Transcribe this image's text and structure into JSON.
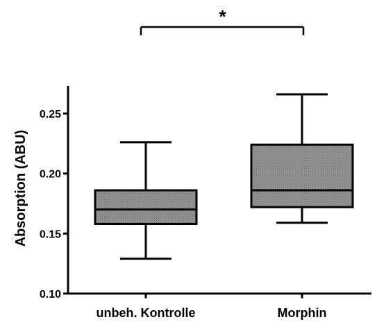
{
  "chart_data": {
    "type": "box",
    "title": "",
    "xlabel": "",
    "ylabel": "Absorption (ABU)",
    "ylim": [
      0.1,
      0.27
    ],
    "yticks": [
      0.1,
      0.15,
      0.2,
      0.25
    ],
    "ytick_labels": [
      "0.10",
      "0.15",
      "0.20",
      "0.25"
    ],
    "categories": [
      "unbeh. Kontrolle",
      "Morphin"
    ],
    "boxes": [
      {
        "category": "unbeh. Kontrolle",
        "min": 0.129,
        "q1": 0.158,
        "median": 0.17,
        "q3": 0.186,
        "max": 0.226
      },
      {
        "category": "Morphin",
        "min": 0.159,
        "q1": 0.172,
        "median": 0.186,
        "q3": 0.224,
        "max": 0.266
      }
    ],
    "annotations": [
      {
        "text": "*",
        "between": [
          "unbeh. Kontrolle",
          "Morphin"
        ]
      }
    ],
    "grid": false,
    "box_fill": "#8c8c8c"
  }
}
